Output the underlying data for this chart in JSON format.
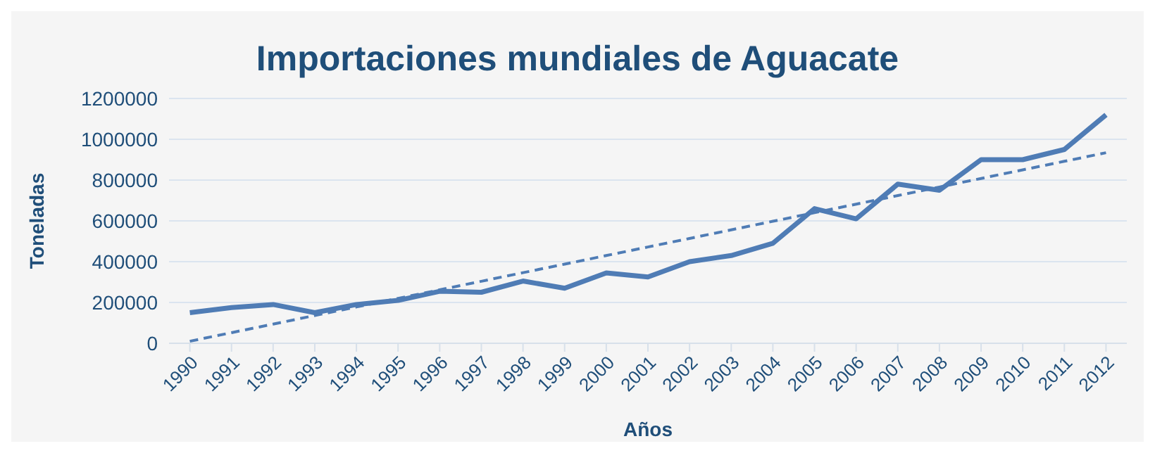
{
  "chart_data": {
    "type": "line",
    "title": "Importaciones mundiales de Aguacate",
    "xlabel": "Años",
    "ylabel": "Toneladas",
    "categories": [
      "1990",
      "1991",
      "1992",
      "1993",
      "1994",
      "1995",
      "1996",
      "1997",
      "1998",
      "1999",
      "2000",
      "2001",
      "2002",
      "2003",
      "2004",
      "2005",
      "2006",
      "2007",
      "2008",
      "2009",
      "2010",
      "2011",
      "2012"
    ],
    "series": [
      {
        "color": "#4f7cb5",
        "values": [
          150000,
          175000,
          190000,
          150000,
          190000,
          210000,
          255000,
          250000,
          305000,
          270000,
          345000,
          325000,
          400000,
          430000,
          490000,
          660000,
          610000,
          780000,
          750000,
          900000,
          900000,
          950000,
          1120000
        ]
      },
      {
        "type": "line",
        "line_style": "dashed",
        "color": "#4f7cb5",
        "values": [
          10000,
          52000,
          94000,
          136000,
          178000,
          220000,
          262000,
          304000,
          346000,
          388000,
          430000,
          472000,
          514000,
          556000,
          598000,
          640000,
          682000,
          724000,
          766000,
          808000,
          850000,
          892000,
          934000
        ]
      }
    ],
    "ylim": [
      0,
      1200000
    ],
    "yticks": [
      0,
      200000,
      400000,
      600000,
      800000,
      1000000,
      1200000
    ],
    "grid": "y",
    "marker": "none",
    "line_style": "solid"
  }
}
